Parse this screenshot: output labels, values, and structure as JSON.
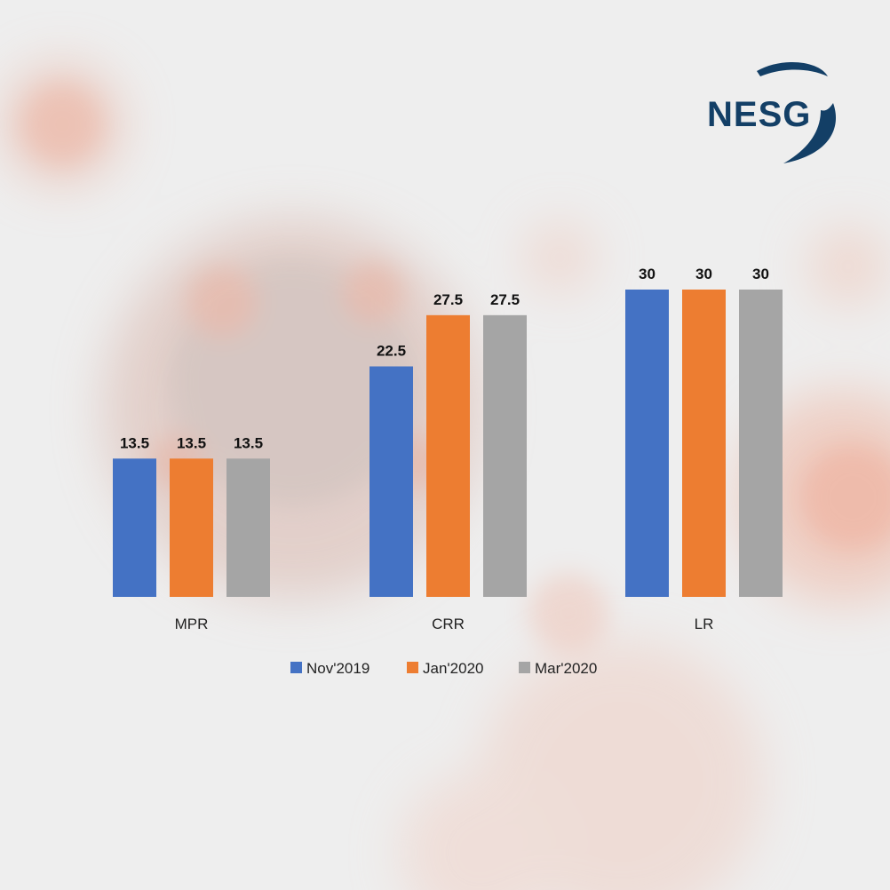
{
  "logo": {
    "text": "NESG",
    "color": "#133f66"
  },
  "chart_data": {
    "type": "bar",
    "title": "",
    "xlabel": "",
    "ylabel": "",
    "ylim": [
      0,
      30
    ],
    "grid": false,
    "legend": "bottom",
    "categories": [
      "MPR",
      "CRR",
      "LR"
    ],
    "series": [
      {
        "name": "Nov'2019",
        "color": "#4472c4",
        "values": [
          13.5,
          22.5,
          30
        ]
      },
      {
        "name": "Jan'2020",
        "color": "#ed7d31",
        "values": [
          13.5,
          27.5,
          30
        ]
      },
      {
        "name": "Mar'2020",
        "color": "#a5a5a5",
        "values": [
          13.5,
          27.5,
          30
        ]
      }
    ]
  }
}
